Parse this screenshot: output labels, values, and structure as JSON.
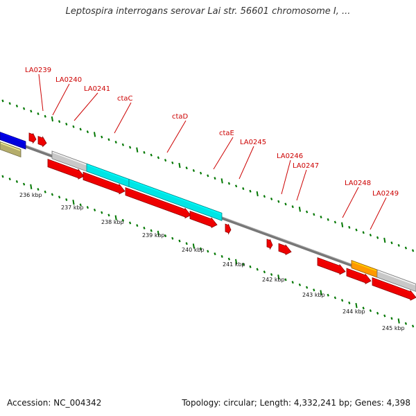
{
  "title": "Leptospira interrogans serovar Lai str. 56601 chromosome I, ...",
  "footer": {
    "accession": "Accession: NC_004342",
    "summary": "Topology: circular; Length: 4,332,241 bp; Genes: 4,398"
  },
  "colors": {
    "red_gene": "#ee0000",
    "cyan_gene": "#00e5e5",
    "gray_gene": "#c8c8c8",
    "blue_gene": "#0000dd",
    "olive_gene": "#b5ad6b",
    "orange_gene": "#ff9900",
    "backbone": "#777777",
    "tick_green": "#007700",
    "label_red": "#cc0000"
  },
  "scale_labels": [
    "236 kbp",
    "237 kbp",
    "238 kbp",
    "239 kbp",
    "240 kbp",
    "241 kbp",
    "242 kbp",
    "243 kbp",
    "244 kbp",
    "245 kbp"
  ],
  "gene_labels": [
    "LA0239",
    "LA0240",
    "LA0241",
    "ctaC",
    "ctaD",
    "ctaE",
    "LA0245",
    "LA0246",
    "LA0247",
    "LA0248",
    "LA0249"
  ],
  "features": [
    {
      "track": 3,
      "start": 0,
      "end": 37,
      "color": "blue",
      "arrow": false
    },
    {
      "track": 2,
      "start": 0,
      "end": 30,
      "color": "olive",
      "arrow": false
    },
    {
      "track": 4,
      "start": 42,
      "end": 52,
      "color": "red",
      "arrow": true
    },
    {
      "track": 4,
      "start": 55,
      "end": 67,
      "color": "red",
      "arrow": true
    },
    {
      "track": 3,
      "start": 75,
      "end": 127,
      "color": "gray",
      "arrow": false
    },
    {
      "track": 3,
      "start": 125,
      "end": 186,
      "color": "cyan",
      "arrow": false
    },
    {
      "track": 3,
      "start": 186,
      "end": 320,
      "color": "cyan",
      "arrow": false
    },
    {
      "track": 2,
      "start": 69,
      "end": 121,
      "color": "red",
      "arrow": true
    },
    {
      "track": 2,
      "start": 120,
      "end": 180,
      "color": "red",
      "arrow": true
    },
    {
      "track": 2,
      "start": 181,
      "end": 275,
      "color": "red",
      "arrow": true
    },
    {
      "track": 2,
      "start": 274,
      "end": 313,
      "color": "red",
      "arrow": true
    },
    {
      "track": 2,
      "start": 325,
      "end": 333,
      "color": "red",
      "arrow": true
    },
    {
      "track": 2,
      "start": 385,
      "end": 393,
      "color": "red",
      "arrow": true
    },
    {
      "track": 2,
      "start": 402,
      "end": 420,
      "color": "red",
      "arrow": true
    },
    {
      "track": 2,
      "start": 458,
      "end": 498,
      "color": "red",
      "arrow": true
    },
    {
      "track": 3,
      "start": 507,
      "end": 544,
      "color": "orange",
      "arrow": false
    },
    {
      "track": 3,
      "start": 544,
      "end": 600,
      "color": "gray",
      "arrow": false
    },
    {
      "track": 2,
      "start": 500,
      "end": 535,
      "color": "red",
      "arrow": true
    },
    {
      "track": 2,
      "start": 537,
      "end": 600,
      "color": "red",
      "arrow": true
    }
  ]
}
